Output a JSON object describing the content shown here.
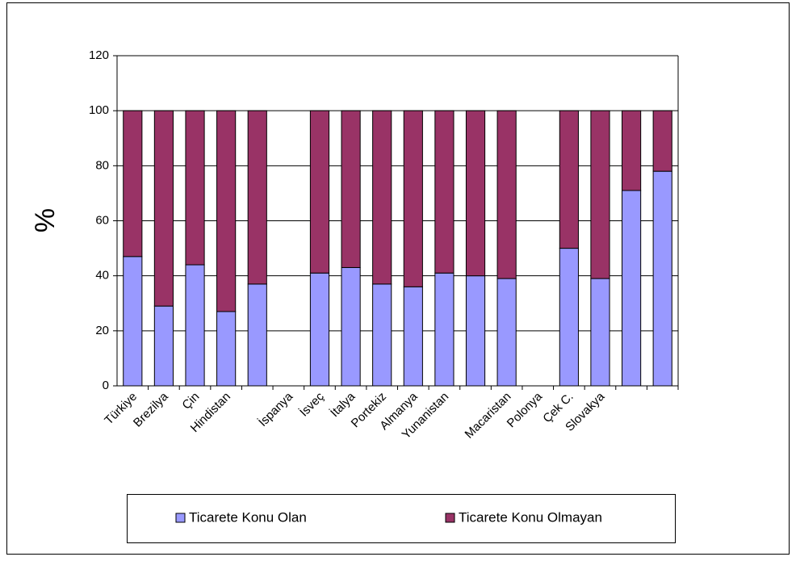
{
  "chart_data": {
    "type": "stacked-bar",
    "ylabel": "%",
    "categories": [
      "Türkiye",
      "Brezilya",
      "Çin",
      "Hindistan",
      null,
      "İspanya",
      "İsveç",
      "İtalya",
      "Portekiz",
      "Almanya",
      "Yunanistan",
      null,
      "Macaristan",
      "Polonya",
      "Çek C.",
      "Slovakya",
      null,
      null
    ],
    "series": [
      {
        "name": "Ticarete Konu Olan",
        "color": "#9999ff",
        "values": [
          47,
          29,
          44,
          27,
          37,
          null,
          41,
          43,
          37,
          36,
          41,
          40,
          39,
          null,
          50,
          39,
          71,
          78
        ]
      },
      {
        "name": "Ticarete Konu Olmayan",
        "color": "#993366",
        "values": [
          53,
          71,
          56,
          73,
          63,
          null,
          59,
          57,
          63,
          64,
          59,
          60,
          61,
          null,
          50,
          61,
          29,
          22
        ]
      }
    ],
    "ylim": [
      0,
      120
    ],
    "yticks": [
      0,
      20,
      40,
      60,
      80,
      100,
      120
    ],
    "grid": true
  }
}
